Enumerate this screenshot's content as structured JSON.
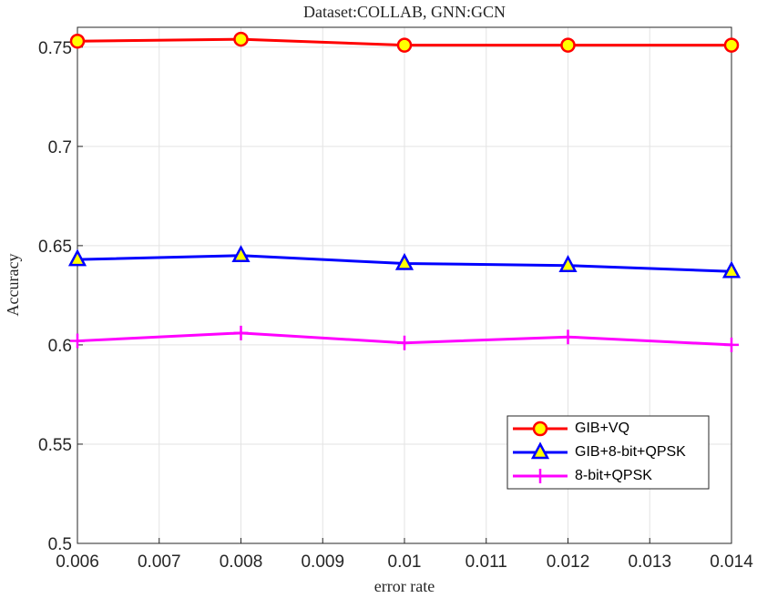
{
  "chart_data": {
    "type": "line",
    "title": "Dataset:COLLAB, GNN:GCN",
    "x_label": "error rate",
    "y_label": "Accuracy",
    "x": [
      0.006,
      0.008,
      0.01,
      0.012,
      0.014
    ],
    "series": [
      {
        "name": "GIB+VQ",
        "color": "#ff0000",
        "marker": "circle",
        "marker_fill": "#ffff00",
        "values": [
          0.753,
          0.754,
          0.751,
          0.751,
          0.751
        ]
      },
      {
        "name": "GIB+8-bit+QPSK",
        "color": "#0000ff",
        "marker": "triangle",
        "marker_fill": "#ffff00",
        "values": [
          0.643,
          0.645,
          0.641,
          0.64,
          0.637
        ]
      },
      {
        "name": "8-bit+QPSK",
        "color": "#ff00ff",
        "marker": "plus",
        "values": [
          0.602,
          0.606,
          0.601,
          0.604,
          0.6
        ]
      }
    ],
    "xlim": [
      0.006,
      0.014
    ],
    "xticks": [
      0.006,
      0.007,
      0.008,
      0.009,
      0.01,
      0.011,
      0.012,
      0.013,
      0.014
    ],
    "ylim": [
      0.5,
      0.76
    ],
    "yticks": [
      0.5,
      0.55,
      0.6,
      0.65,
      0.7,
      0.75
    ],
    "grid": true,
    "legend": "lower right"
  }
}
